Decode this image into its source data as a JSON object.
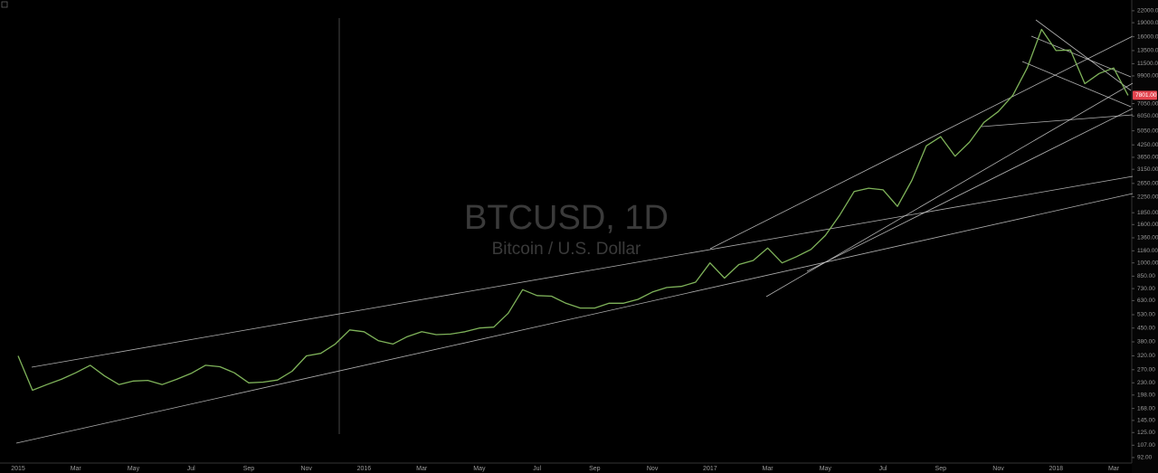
{
  "chart_data": {
    "type": "line",
    "title": "BTCUSD, 1D",
    "subtitle": "Bitcoin / U.S. Dollar",
    "log_scale": true,
    "color": "#7fb35a",
    "categories": [
      "2015",
      null,
      null,
      null,
      "Mar",
      null,
      null,
      null,
      "May",
      null,
      null,
      null,
      "Jul",
      null,
      null,
      null,
      "Sep",
      null,
      null,
      null,
      "Nov",
      null,
      null,
      null,
      "2016",
      null,
      null,
      null,
      "Mar",
      null,
      null,
      null,
      "May",
      null,
      null,
      null,
      "Jul",
      null,
      null,
      null,
      "Sep",
      null,
      null,
      null,
      "Nov",
      null,
      null,
      null,
      "2017",
      null,
      null,
      null,
      "Mar",
      null,
      null,
      null,
      "May",
      null,
      null,
      null,
      "Jul",
      null,
      null,
      null,
      "Sep",
      null,
      null,
      null,
      "Nov",
      null,
      null,
      null,
      "2018",
      null,
      null,
      null,
      "Mar",
      null
    ],
    "values": [
      320,
      210,
      225,
      240,
      260,
      285,
      250,
      225,
      235,
      237,
      225,
      240,
      258,
      285,
      280,
      260,
      230,
      232,
      238,
      265,
      320,
      330,
      370,
      440,
      430,
      385,
      370,
      405,
      430,
      415,
      418,
      430,
      450,
      455,
      540,
      720,
      670,
      665,
      610,
      575,
      575,
      610,
      610,
      640,
      700,
      740,
      750,
      790,
      1000,
      830,
      980,
      1030,
      1200,
      1000,
      1080,
      1180,
      1400,
      1800,
      2400,
      2500,
      2450,
      2000,
      2750,
      4200,
      4700,
      3700,
      4400,
      5600,
      6400,
      7800,
      10900,
      17500,
      13500,
      13600,
      9000,
      10200,
      10900,
      7801
    ],
    "value_labels": [
      null,
      null,
      null,
      null,
      null,
      null,
      null,
      null,
      null,
      null,
      null,
      null,
      null,
      null,
      null,
      null,
      null,
      null,
      null,
      null,
      null,
      null,
      null,
      null,
      null,
      null,
      null,
      null,
      null,
      null,
      null,
      null,
      null,
      null,
      null,
      null,
      null,
      null,
      null,
      null,
      null,
      null,
      null,
      null,
      null,
      null,
      null,
      null,
      null,
      null,
      null,
      null,
      null,
      null,
      null,
      null,
      null,
      null,
      null,
      null,
      null,
      null,
      null,
      null,
      null,
      null,
      null,
      null,
      null,
      null,
      null,
      null,
      null,
      null,
      null,
      null,
      null,
      "7801.00"
    ],
    "ylim": [
      86,
      25100
    ],
    "yticks": [
      {
        "value": 22000,
        "label": "22000.00"
      },
      {
        "value": 19000,
        "label": "19000.00"
      },
      {
        "value": 16000,
        "label": "16000.00"
      },
      {
        "value": 13500,
        "label": "13500.00"
      },
      {
        "value": 11500,
        "label": "11500.00"
      },
      {
        "value": 9900,
        "label": "9900.00"
      },
      {
        "value": 7050,
        "label": "7050.00"
      },
      {
        "value": 6050,
        "label": "6050.00"
      },
      {
        "value": 5050,
        "label": "5050.00"
      },
      {
        "value": 4250,
        "label": "4250.00"
      },
      {
        "value": 3650,
        "label": "3650.00"
      },
      {
        "value": 3150,
        "label": "3150.00"
      },
      {
        "value": 2650,
        "label": "2650.00"
      },
      {
        "value": 2250,
        "label": "2250.00"
      },
      {
        "value": 1850,
        "label": "1850.00"
      },
      {
        "value": 1600,
        "label": "1600.00"
      },
      {
        "value": 1360,
        "label": "1360.00"
      },
      {
        "value": 1160,
        "label": "1160.00"
      },
      {
        "value": 1000,
        "label": "1000.00"
      },
      {
        "value": 850,
        "label": "850.00"
      },
      {
        "value": 730,
        "label": "730.00"
      },
      {
        "value": 630,
        "label": "630.00"
      },
      {
        "value": 530,
        "label": "530.00"
      },
      {
        "value": 450,
        "label": "450.00"
      },
      {
        "value": 380,
        "label": "380.00"
      },
      {
        "value": 320,
        "label": "320.00"
      },
      {
        "value": 270,
        "label": "270.00"
      },
      {
        "value": 230,
        "label": "230.00"
      },
      {
        "value": 198,
        "label": "198.00"
      },
      {
        "value": 168,
        "label": "168.00"
      },
      {
        "value": 145,
        "label": "145.00"
      },
      {
        "value": 125,
        "label": "125.00"
      },
      {
        "value": 107,
        "label": "107.00"
      },
      {
        "value": 92,
        "label": "92.00"
      }
    ],
    "grid": false
  }
}
